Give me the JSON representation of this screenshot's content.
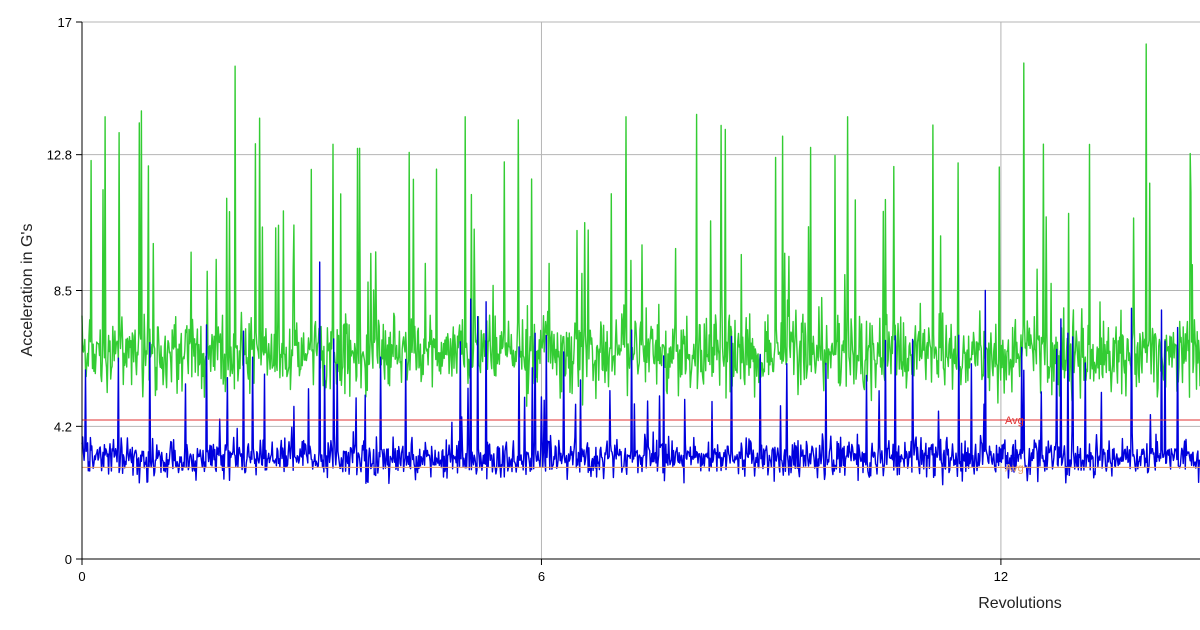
{
  "chart_data": {
    "type": "line",
    "title": "",
    "xlabel": "Revolutions",
    "ylabel": "Acceleration in G's",
    "xlim": [
      0,
      14.6
    ],
    "ylim": [
      0,
      17
    ],
    "x_ticks": [
      0,
      6,
      12
    ],
    "x_tick_labels": [
      "0",
      "6",
      "12"
    ],
    "y_ticks": [
      0,
      4.2,
      8.5,
      12.8,
      17
    ],
    "y_tick_labels": [
      "0",
      "4.2",
      "8.5",
      "12.8",
      "17"
    ],
    "grid": true,
    "legend": "none",
    "series": [
      {
        "color": "#33cc33",
        "sample_count": 1600,
        "approx_mean": 6.5,
        "approx_range": [
          2.0,
          16.3
        ],
        "peaks": [
          {
            "x": 0.3,
            "y": 14.0
          },
          {
            "x": 2.0,
            "y": 15.6
          },
          {
            "x": 3.6,
            "y": 13.0
          },
          {
            "x": 5.0,
            "y": 14.0
          },
          {
            "x": 5.7,
            "y": 13.9
          },
          {
            "x": 7.1,
            "y": 14.0
          },
          {
            "x": 8.4,
            "y": 13.6
          },
          {
            "x": 10.0,
            "y": 14.0
          },
          {
            "x": 12.3,
            "y": 15.7
          },
          {
            "x": 13.9,
            "y": 16.3
          }
        ]
      },
      {
        "color": "#0000dd",
        "sample_count": 1600,
        "approx_mean": 3.2,
        "approx_range": [
          0.6,
          9.4
        ],
        "peaks": [
          {
            "x": 3.1,
            "y": 9.4
          },
          {
            "x": 11.8,
            "y": 8.5
          }
        ]
      }
    ],
    "reference_lines": [
      {
        "y": 4.4,
        "color": "#e03030",
        "label": "Avg"
      },
      {
        "y": 2.9,
        "color": "#e8a060",
        "label": "Avg"
      }
    ]
  }
}
